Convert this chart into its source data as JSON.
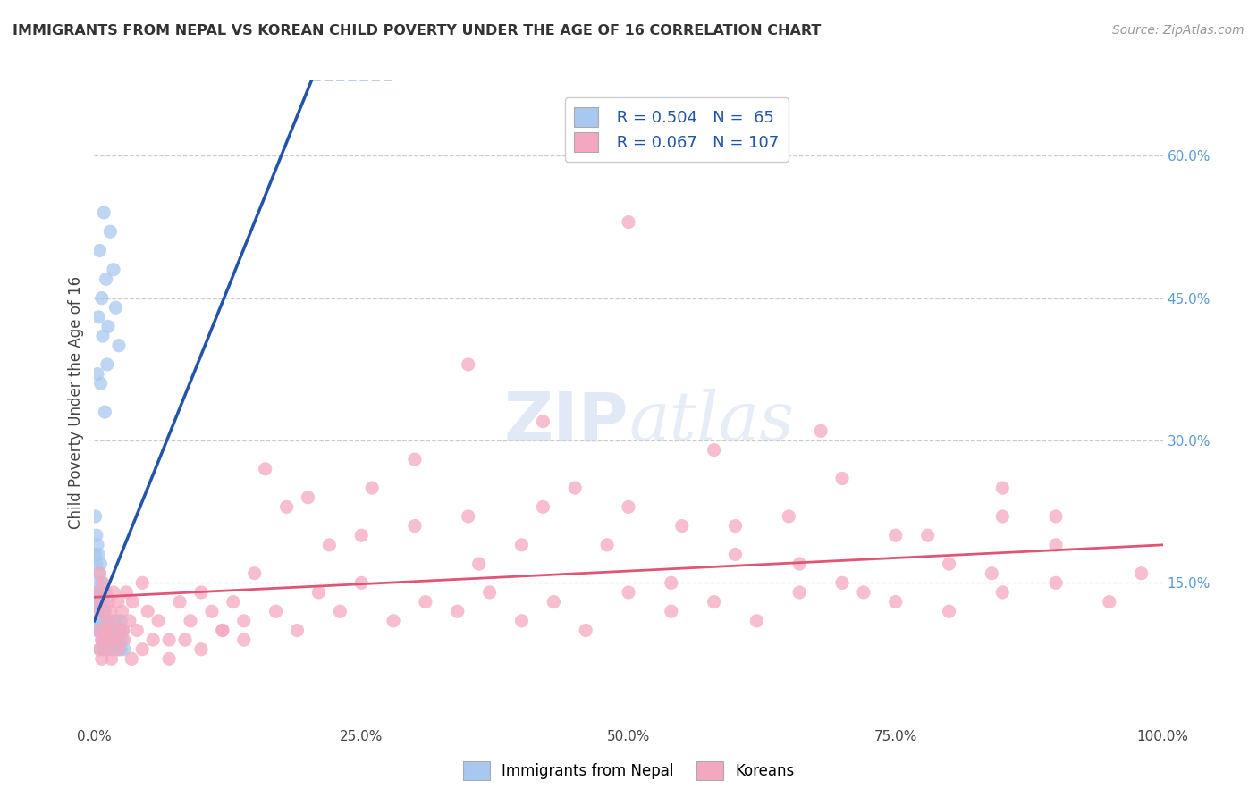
{
  "title": "IMMIGRANTS FROM NEPAL VS KOREAN CHILD POVERTY UNDER THE AGE OF 16 CORRELATION CHART",
  "source": "Source: ZipAtlas.com",
  "ylabel": "Child Poverty Under the Age of 16",
  "xlim": [
    0.0,
    1.0
  ],
  "ylim": [
    0.0,
    0.68
  ],
  "ytick_labels_right": [
    "15.0%",
    "30.0%",
    "45.0%",
    "60.0%"
  ],
  "ytick_values_right": [
    0.15,
    0.3,
    0.45,
    0.6
  ],
  "nepal_R": 0.504,
  "nepal_N": 65,
  "korean_R": 0.067,
  "korean_N": 107,
  "nepal_color": "#a8c8f0",
  "korean_color": "#f4a8bf",
  "nepal_line_color": "#2255aa",
  "korean_line_color": "#e05575",
  "nepal_line_dashed_color": "#8ab0d8",
  "background_color": "#ffffff",
  "grid_color": "#cccccc",
  "nepal_slope": 2.8,
  "nepal_intercept": 0.11,
  "korean_slope": 0.055,
  "korean_intercept": 0.135,
  "nepal_scatter_x": [
    0.001,
    0.001,
    0.001,
    0.002,
    0.002,
    0.002,
    0.002,
    0.003,
    0.003,
    0.003,
    0.004,
    0.004,
    0.004,
    0.005,
    0.005,
    0.005,
    0.005,
    0.006,
    0.006,
    0.006,
    0.007,
    0.007,
    0.007,
    0.008,
    0.008,
    0.008,
    0.009,
    0.009,
    0.01,
    0.01,
    0.011,
    0.011,
    0.012,
    0.013,
    0.014,
    0.015,
    0.016,
    0.017,
    0.018,
    0.019,
    0.02,
    0.021,
    0.022,
    0.023,
    0.024,
    0.025,
    0.025,
    0.026,
    0.027,
    0.028,
    0.005,
    0.007,
    0.009,
    0.011,
    0.013,
    0.015,
    0.018,
    0.02,
    0.023,
    0.003,
    0.004,
    0.006,
    0.008,
    0.01,
    0.012
  ],
  "nepal_scatter_y": [
    0.22,
    0.18,
    0.14,
    0.2,
    0.17,
    0.13,
    0.1,
    0.19,
    0.15,
    0.12,
    0.18,
    0.14,
    0.11,
    0.16,
    0.13,
    0.1,
    0.08,
    0.17,
    0.14,
    0.11,
    0.15,
    0.12,
    0.09,
    0.14,
    0.11,
    0.08,
    0.13,
    0.1,
    0.12,
    0.09,
    0.11,
    0.08,
    0.1,
    0.09,
    0.11,
    0.08,
    0.1,
    0.09,
    0.08,
    0.1,
    0.09,
    0.11,
    0.08,
    0.09,
    0.1,
    0.08,
    0.11,
    0.09,
    0.1,
    0.08,
    0.5,
    0.45,
    0.54,
    0.47,
    0.42,
    0.52,
    0.48,
    0.44,
    0.4,
    0.37,
    0.43,
    0.36,
    0.41,
    0.33,
    0.38
  ],
  "korean_scatter_x": [
    0.002,
    0.003,
    0.004,
    0.005,
    0.006,
    0.007,
    0.008,
    0.009,
    0.01,
    0.011,
    0.012,
    0.013,
    0.015,
    0.016,
    0.018,
    0.02,
    0.022,
    0.024,
    0.026,
    0.028,
    0.03,
    0.033,
    0.036,
    0.04,
    0.045,
    0.05,
    0.06,
    0.07,
    0.08,
    0.09,
    0.1,
    0.11,
    0.12,
    0.13,
    0.14,
    0.15,
    0.17,
    0.19,
    0.21,
    0.23,
    0.25,
    0.28,
    0.31,
    0.34,
    0.37,
    0.4,
    0.43,
    0.46,
    0.5,
    0.54,
    0.58,
    0.62,
    0.66,
    0.7,
    0.75,
    0.8,
    0.85,
    0.9,
    0.95,
    0.98,
    0.2,
    0.25,
    0.3,
    0.35,
    0.4,
    0.45,
    0.5,
    0.55,
    0.6,
    0.65,
    0.7,
    0.75,
    0.8,
    0.85,
    0.9,
    0.16,
    0.18,
    0.22,
    0.26,
    0.3,
    0.36,
    0.42,
    0.48,
    0.54,
    0.6,
    0.66,
    0.72,
    0.78,
    0.84,
    0.9,
    0.005,
    0.007,
    0.009,
    0.011,
    0.013,
    0.016,
    0.019,
    0.023,
    0.027,
    0.035,
    0.045,
    0.055,
    0.07,
    0.085,
    0.1,
    0.12,
    0.14
  ],
  "korean_scatter_y": [
    0.14,
    0.12,
    0.1,
    0.16,
    0.13,
    0.09,
    0.15,
    0.12,
    0.1,
    0.14,
    0.11,
    0.13,
    0.12,
    0.09,
    0.14,
    0.11,
    0.13,
    0.1,
    0.12,
    0.09,
    0.14,
    0.11,
    0.13,
    0.1,
    0.15,
    0.12,
    0.11,
    0.09,
    0.13,
    0.11,
    0.14,
    0.12,
    0.1,
    0.13,
    0.11,
    0.16,
    0.12,
    0.1,
    0.14,
    0.12,
    0.15,
    0.11,
    0.13,
    0.12,
    0.14,
    0.11,
    0.13,
    0.1,
    0.14,
    0.12,
    0.13,
    0.11,
    0.14,
    0.15,
    0.13,
    0.12,
    0.14,
    0.15,
    0.13,
    0.16,
    0.24,
    0.2,
    0.28,
    0.22,
    0.19,
    0.25,
    0.23,
    0.21,
    0.18,
    0.22,
    0.26,
    0.2,
    0.17,
    0.22,
    0.19,
    0.27,
    0.23,
    0.19,
    0.25,
    0.21,
    0.17,
    0.23,
    0.19,
    0.15,
    0.21,
    0.17,
    0.14,
    0.2,
    0.16,
    0.22,
    0.08,
    0.07,
    0.09,
    0.08,
    0.1,
    0.07,
    0.09,
    0.08,
    0.1,
    0.07,
    0.08,
    0.09,
    0.07,
    0.09,
    0.08,
    0.1,
    0.09
  ],
  "korean_extra_x": [
    0.85,
    0.5,
    0.35,
    0.42,
    0.58,
    0.68
  ],
  "korean_extra_y": [
    0.25,
    0.53,
    0.38,
    0.32,
    0.29,
    0.31
  ]
}
